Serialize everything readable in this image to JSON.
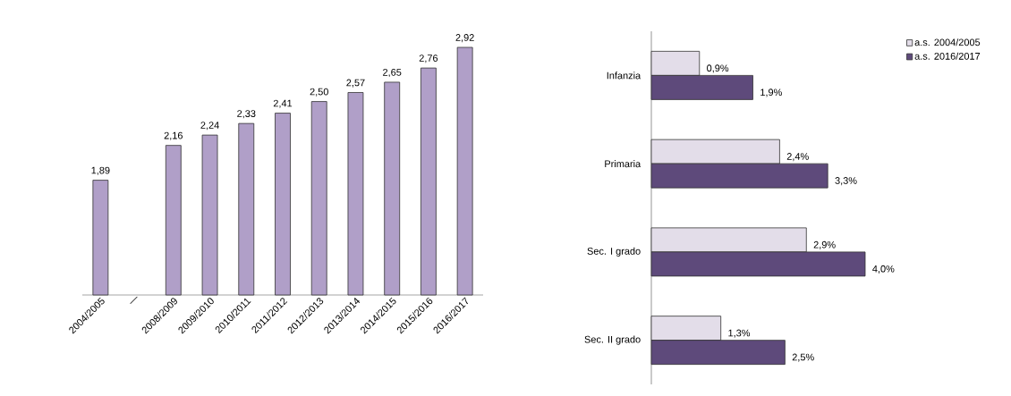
{
  "chart_data": [
    {
      "type": "bar",
      "categories": [
        "2004/2005",
        "—",
        "2008/2009",
        "2009/2010",
        "2010/2011",
        "2011/2012",
        "2012/2013",
        "2013/2014",
        "2014/2015",
        "2015/2016",
        "2016/2017"
      ],
      "values": [
        1.89,
        null,
        2.16,
        2.24,
        2.33,
        2.41,
        2.5,
        2.57,
        2.65,
        2.76,
        2.92
      ],
      "value_labels": [
        "1,89",
        null,
        "2,16",
        "2,24",
        "2,33",
        "2,41",
        "2,50",
        "2,57",
        "2,65",
        "2,76",
        "2,92"
      ],
      "color": "#b09fc8",
      "ylim": [
        1,
        2.92
      ],
      "tick_labels": "x"
    },
    {
      "type": "bar",
      "orientation": "horizontal",
      "categories": [
        "Infanzia",
        "Primaria",
        "Sec. I grado",
        "Sec. II grado"
      ],
      "series": [
        {
          "name": "a.s. 2004/2005",
          "color": "#e3dde9",
          "values": [
            0.9,
            2.4,
            2.9,
            1.3
          ],
          "value_labels": [
            "0,9%",
            "2,4%",
            "2,9%",
            "1,3%"
          ]
        },
        {
          "name": "a.s. 2016/2017",
          "color": "#5e4a7b",
          "values": [
            1.9,
            3.3,
            4.0,
            2.5
          ],
          "value_labels": [
            "1,9%",
            "3,3%",
            "4,0%",
            "2,5%"
          ]
        }
      ],
      "xlim": [
        0,
        4.0
      ],
      "legend": "top right",
      "tick_labels": "y"
    }
  ]
}
